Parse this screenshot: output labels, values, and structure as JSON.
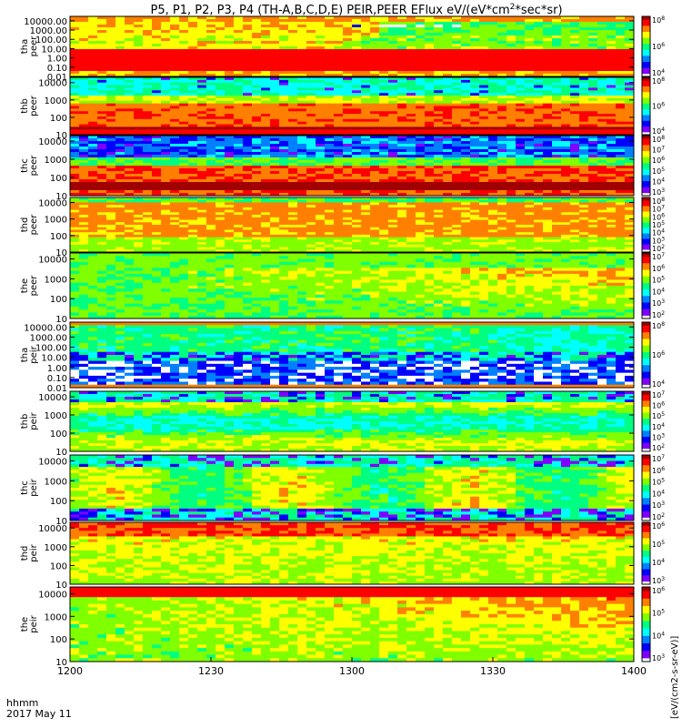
{
  "title": "P5, P1, P2, P3, P4 (TH-A,B,C,D,E) PEIR,PEER EFlux eV/(eV*cm",
  "title_sup": "2",
  "title_end": "*sec*sr)",
  "colorbar_unit_label": "[eV/(cm2-s-sr-eV)]",
  "bottom_label": {
    "line1": "hhmm",
    "line2": "2017 May 11"
  },
  "chart_data": [
    {
      "type": "heatmap",
      "panel": "tha peer",
      "ylabel": [
        "tha",
        "peer"
      ],
      "yscale": "log",
      "ylim": [
        0.01,
        30000
      ],
      "y_ticks": [
        "10000.00",
        "1000.00",
        "100.00",
        "10.00",
        "1.00",
        "0.10",
        "0.01"
      ],
      "colorbar_ticks": [
        "10^8",
        "10^6",
        "10^4"
      ],
      "style": "peer_a"
    },
    {
      "type": "heatmap",
      "panel": "thb peer",
      "ylabel": [
        "thb",
        "peer"
      ],
      "yscale": "log",
      "ylim": [
        10,
        20000
      ],
      "y_ticks": [
        "10000",
        "1000",
        "100",
        "10"
      ],
      "colorbar_ticks": [
        "10^8",
        "10^6",
        "10^4"
      ],
      "style": "peer_b"
    },
    {
      "type": "heatmap",
      "panel": "thc peer",
      "ylabel": [
        "thc",
        "peer"
      ],
      "yscale": "log",
      "ylim": [
        10,
        20000
      ],
      "y_ticks": [
        "10000",
        "1000",
        "100",
        "10"
      ],
      "colorbar_ticks": [
        "10^8",
        "10^7",
        "10^6",
        "10^5",
        "10^4",
        "10^3"
      ],
      "style": "peer_c"
    },
    {
      "type": "heatmap",
      "panel": "thd peer",
      "ylabel": [
        "thd",
        "peer"
      ],
      "yscale": "log",
      "ylim": [
        10,
        20000
      ],
      "y_ticks": [
        "10000",
        "1000",
        "100",
        "10"
      ],
      "colorbar_ticks": [
        "10^8",
        "10^7",
        "10^6",
        "10^5",
        "10^4",
        "10^3",
        "10^2"
      ],
      "style": "peer_d"
    },
    {
      "type": "heatmap",
      "panel": "the peer",
      "ylabel": [
        "the",
        "peer"
      ],
      "yscale": "log",
      "ylim": [
        10,
        20000
      ],
      "y_ticks": [
        "10000",
        "1000",
        "100",
        "10"
      ],
      "colorbar_ticks": [
        "10^7",
        "10^6",
        "10^5",
        "10^4",
        "10^3",
        "10^2"
      ],
      "style": "peer_e"
    },
    {
      "type": "heatmap",
      "panel": "tha peir",
      "ylabel": [
        "tha",
        "peir"
      ],
      "yscale": "log",
      "ylim": [
        0.01,
        30000
      ],
      "y_ticks": [
        "10000.00",
        "1000.00",
        "100.00",
        "10.00",
        "1.00",
        "0.10",
        "0.01"
      ],
      "colorbar_ticks": [
        "10^8",
        "10^6",
        "10^4"
      ],
      "style": "peir_a"
    },
    {
      "type": "heatmap",
      "panel": "thb peir",
      "ylabel": [
        "thb",
        "peir"
      ],
      "yscale": "log",
      "ylim": [
        10,
        20000
      ],
      "y_ticks": [
        "10000",
        "1000",
        "100",
        "10"
      ],
      "colorbar_ticks": [
        "10^7",
        "10^6",
        "10^5",
        "10^4",
        "10^3",
        "10^2"
      ],
      "style": "peir_b"
    },
    {
      "type": "heatmap",
      "panel": "thc peir",
      "ylabel": [
        "thc",
        "peir"
      ],
      "yscale": "log",
      "ylim": [
        10,
        20000
      ],
      "y_ticks": [
        "10000",
        "1000",
        "100",
        "10"
      ],
      "colorbar_ticks": [
        "10^7",
        "10^6",
        "10^5",
        "10^4",
        "10^3",
        "10^2"
      ],
      "style": "peir_c"
    },
    {
      "type": "heatmap",
      "panel": "thd peir",
      "ylabel": [
        "thd",
        "peir"
      ],
      "yscale": "log",
      "ylim": [
        10,
        20000
      ],
      "y_ticks": [
        "10000",
        "1000",
        "100",
        "10"
      ],
      "colorbar_ticks": [
        "10^6",
        "10^5",
        "10^4",
        "10^3"
      ],
      "style": "peir_d"
    },
    {
      "type": "heatmap",
      "panel": "the peir",
      "ylabel": [
        "the",
        "peir"
      ],
      "yscale": "log",
      "ylim": [
        10,
        20000
      ],
      "y_ticks": [
        "10000",
        "1000",
        "100",
        "10"
      ],
      "colorbar_ticks": [
        "10^6",
        "10^5",
        "10^4",
        "10^3"
      ],
      "style": "peir_e"
    }
  ],
  "x_axis": {
    "ticks": [
      "1200",
      "1230",
      "1300",
      "1330",
      "1400"
    ],
    "range_minutes": [
      0,
      120
    ]
  },
  "colormap": [
    "#ffffff",
    "#7f00ff",
    "#0000ff",
    "#0080ff",
    "#00ffff",
    "#00ff80",
    "#80ff00",
    "#ffff00",
    "#ff8000",
    "#ff0000",
    "#a00000"
  ]
}
